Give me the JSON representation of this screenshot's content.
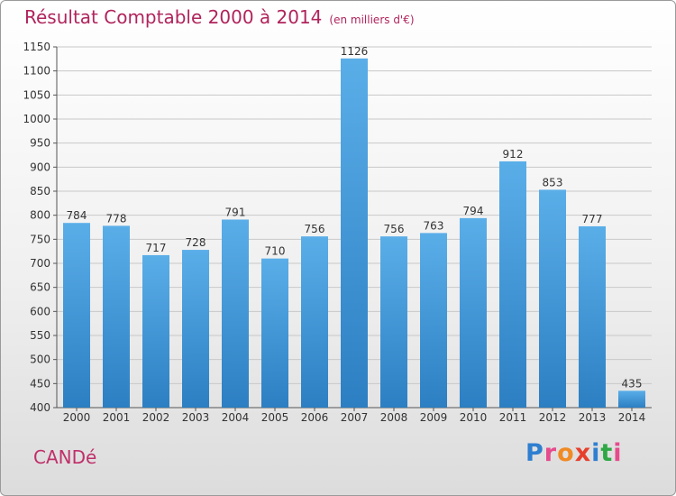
{
  "header": {
    "title": "Résultat Comptable 2000 à 2014",
    "subtitle": "(en milliers d'€)"
  },
  "footer": {
    "commune": "CANDé",
    "logo_text": "Proxiti"
  },
  "colors": {
    "title": "#b0245c",
    "bar_top": "#5aaee8",
    "bar_bottom": "#2c7fc2",
    "logo_letters": [
      "#2f7fd0",
      "#e64b8c",
      "#f08a24",
      "#e6402c",
      "#2f7fd0",
      "#2fa845",
      "#e64b8c"
    ]
  },
  "chart_data": {
    "type": "bar",
    "title": "Résultat Comptable 2000 à 2014",
    "subtitle": "(en milliers d'€)",
    "categories": [
      "2000",
      "2001",
      "2002",
      "2003",
      "2004",
      "2005",
      "2006",
      "2007",
      "2008",
      "2009",
      "2010",
      "2011",
      "2012",
      "2013",
      "2014"
    ],
    "values": [
      784,
      778,
      717,
      728,
      791,
      710,
      756,
      1126,
      756,
      763,
      794,
      912,
      853,
      777,
      435
    ],
    "ylim": [
      400,
      1150
    ],
    "yticks": [
      400,
      450,
      500,
      550,
      600,
      650,
      700,
      750,
      800,
      850,
      900,
      950,
      1000,
      1050,
      1100,
      1150
    ],
    "grid": "horizontal",
    "data_labels": true
  }
}
